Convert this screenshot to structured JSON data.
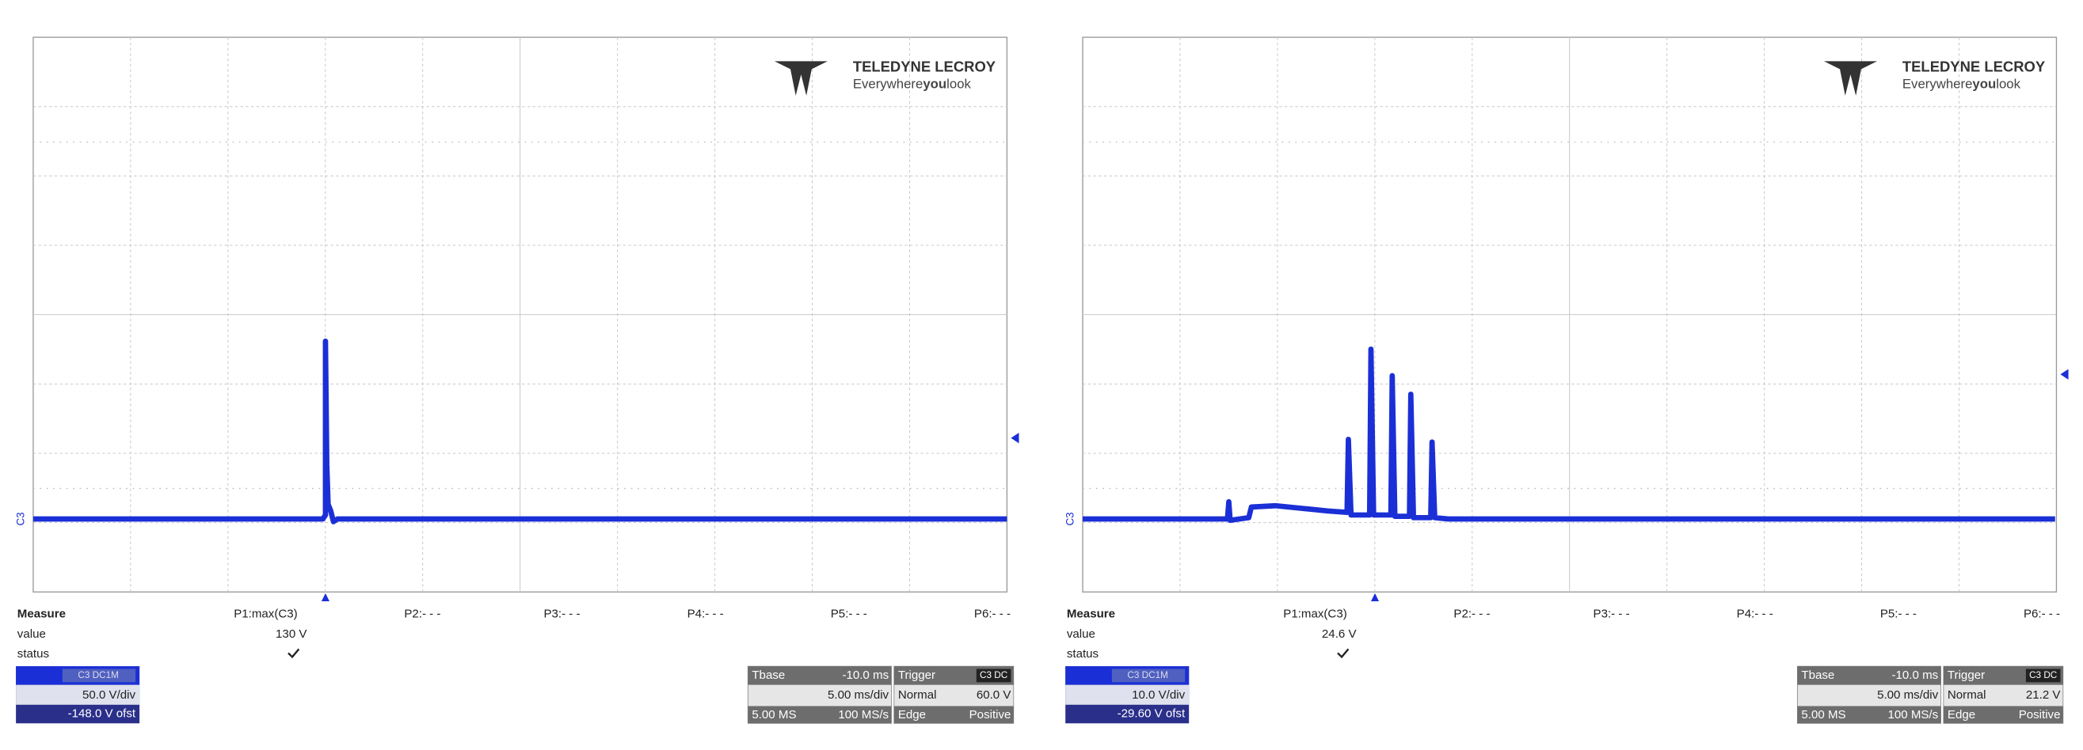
{
  "panels": [
    {
      "logo": {
        "brand": "TELEDYNE LECROY",
        "tagline": [
          "Everywhere",
          "you",
          "look"
        ]
      },
      "channel_marker": "C3",
      "measure": {
        "header": "Measure",
        "row_labels": [
          "value",
          "status"
        ],
        "params": [
          {
            "name": "P1:max(C3)",
            "value": "130 V"
          },
          {
            "name": "P2:- - -"
          },
          {
            "name": "P3:- - -"
          },
          {
            "name": "P4:- - -"
          },
          {
            "name": "P5:- - -"
          },
          {
            "name": "P6:- - -"
          }
        ]
      },
      "channel_box": {
        "label": "C3 DC1M",
        "scale": "50.0 V/div",
        "offset": "-148.0 V ofst"
      },
      "timebase": {
        "label": "Tbase",
        "delay": "-10.0 ms",
        "scale": "5.00 ms/div",
        "samples": "5.00 MS",
        "rate": "100 MS/s"
      },
      "trigger": {
        "label": "Trigger",
        "source": "C3 DC",
        "mode": "Normal",
        "level": "60.0 V",
        "type": "Edge",
        "slope": "Positive"
      }
    },
    {
      "logo": {
        "brand": "TELEDYNE LECROY",
        "tagline": [
          "Everywhere",
          "you",
          "look"
        ]
      },
      "channel_marker": "C3",
      "measure": {
        "header": "Measure",
        "row_labels": [
          "value",
          "status"
        ],
        "params": [
          {
            "name": "P1:max(C3)",
            "value": "24.6 V"
          },
          {
            "name": "P2:- - -"
          },
          {
            "name": "P3:- - -"
          },
          {
            "name": "P4:- - -"
          },
          {
            "name": "P5:- - -"
          },
          {
            "name": "P6:- - -"
          }
        ]
      },
      "channel_box": {
        "label": "C3 DC1M",
        "scale": "10.0 V/div",
        "offset": "-29.60 V ofst"
      },
      "timebase": {
        "label": "Tbase",
        "delay": "-10.0 ms",
        "scale": "5.00 ms/div",
        "samples": "5.00 MS",
        "rate": "100 MS/s"
      },
      "trigger": {
        "label": "Trigger",
        "source": "C3 DC",
        "mode": "Normal",
        "level": "21.2 V",
        "type": "Edge",
        "slope": "Positive"
      }
    }
  ]
}
